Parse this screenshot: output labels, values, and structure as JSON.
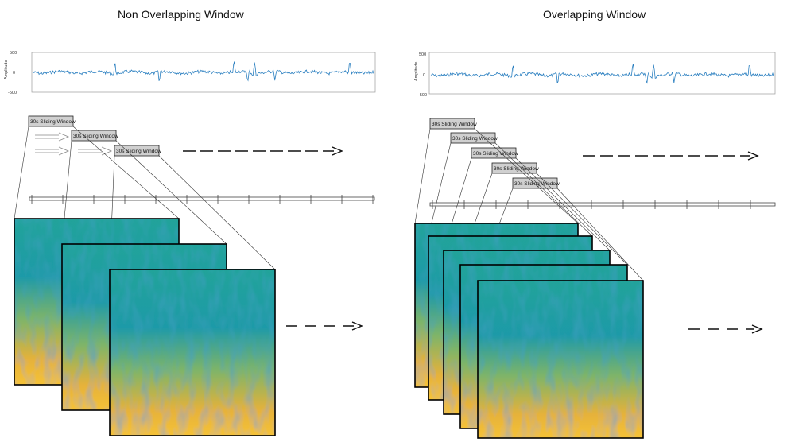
{
  "left_panel": {
    "title": "Non Overlapping Window",
    "ylabel": "Amplitude",
    "yticks": [
      "500",
      "0",
      "-500"
    ],
    "window_label": "30s Sliding Window",
    "window_count": 3,
    "spectrogram_count": 3
  },
  "right_panel": {
    "title": "Overlapping Window",
    "ylabel": "Amplitude",
    "yticks": [
      "500",
      "0",
      "-500"
    ],
    "window_label": "30s Sliding Window",
    "window_count": 5,
    "spectrogram_count": 5
  },
  "colors": {
    "signal": "#2a7fc0",
    "spectrogram_top": "#1f9e9a",
    "spectrogram_mid": "#6bb06a",
    "spectrogram_bottom": "#f2b531",
    "window_box": "#c8c8c8"
  }
}
